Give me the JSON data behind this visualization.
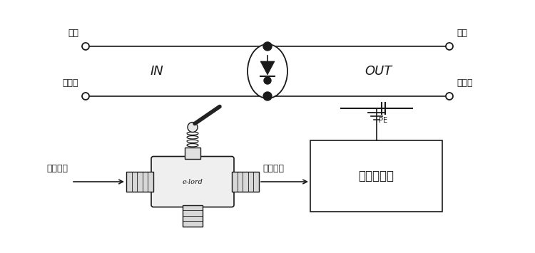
{
  "bg_color": "#ffffff",
  "line_color": "#1a1a1a",
  "text_color": "#1a1a1a",
  "label_xinput": "信号输入",
  "label_xoutput": "信号输出",
  "label_device": "被保护设备",
  "label_elord": "e-lord",
  "label_PE": "PE",
  "label_core_wire": "芯线",
  "label_shield": "屏蔽层",
  "label_IN": "IN",
  "label_OUT": "OUT",
  "font_size_main": 9,
  "font_size_label": 9,
  "font_size_inout": 13
}
